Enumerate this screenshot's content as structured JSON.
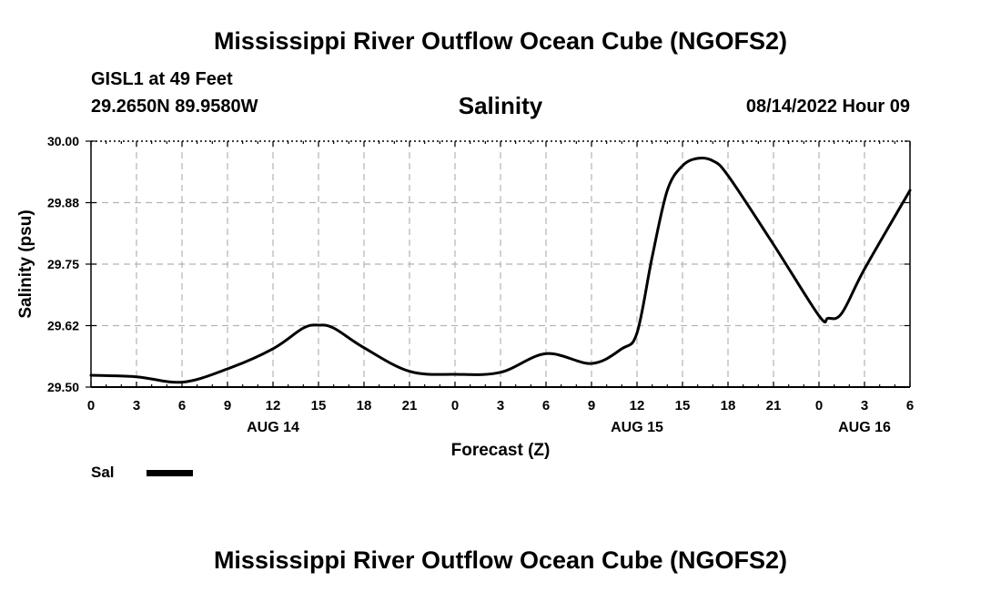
{
  "header": {
    "title": "Mississippi River Outflow Ocean Cube (NGOFS2)",
    "station": "GISL1 at 49 Feet",
    "coords": "29.2650N  89.9580W",
    "timestamp": "08/14/2022 Hour 09"
  },
  "footer": {
    "title": "Mississippi River Outflow Ocean Cube (NGOFS2)"
  },
  "legend": {
    "label": "Sal",
    "color": "#000000"
  },
  "chart_data": {
    "type": "line",
    "title": "Salinity",
    "xlabel": "Forecast (Z)",
    "ylabel": "Salinity (psu)",
    "xlim": [
      0,
      54
    ],
    "ylim": [
      29.5,
      30.0
    ],
    "grid": true,
    "y_ticks": [
      "30.00",
      "29.88",
      "29.75",
      "29.62",
      "29.50"
    ],
    "y_tick_values": [
      30.0,
      29.875,
      29.75,
      29.625,
      29.5
    ],
    "x_ticks": [
      {
        "hour": 0,
        "label": "0"
      },
      {
        "hour": 3,
        "label": "3"
      },
      {
        "hour": 6,
        "label": "6"
      },
      {
        "hour": 9,
        "label": "9"
      },
      {
        "hour": 12,
        "label": "12"
      },
      {
        "hour": 15,
        "label": "15"
      },
      {
        "hour": 18,
        "label": "18"
      },
      {
        "hour": 21,
        "label": "21"
      },
      {
        "hour": 24,
        "label": "0"
      },
      {
        "hour": 27,
        "label": "3"
      },
      {
        "hour": 30,
        "label": "6"
      },
      {
        "hour": 33,
        "label": "9"
      },
      {
        "hour": 36,
        "label": "12"
      },
      {
        "hour": 39,
        "label": "15"
      },
      {
        "hour": 42,
        "label": "18"
      },
      {
        "hour": 45,
        "label": "21"
      },
      {
        "hour": 48,
        "label": "0"
      },
      {
        "hour": 51,
        "label": "3"
      },
      {
        "hour": 54,
        "label": "6"
      }
    ],
    "date_labels": [
      {
        "hour": 12,
        "label": "AUG 14"
      },
      {
        "hour": 36,
        "label": "AUG 15"
      },
      {
        "hour": 51,
        "label": "AUG 16"
      }
    ],
    "series": [
      {
        "name": "Sal",
        "x": [
          0,
          3,
          6,
          9,
          12,
          14,
          15,
          16,
          18,
          21,
          24,
          27,
          30,
          33,
          35,
          36,
          37,
          38,
          39,
          40,
          41,
          42,
          45,
          48,
          48.6,
          49.5,
          51,
          54
        ],
        "y": [
          29.524,
          29.521,
          29.51,
          29.537,
          29.578,
          29.62,
          29.626,
          29.62,
          29.58,
          29.532,
          29.526,
          29.53,
          29.568,
          29.548,
          29.578,
          29.61,
          29.765,
          29.9,
          29.95,
          29.965,
          29.96,
          29.93,
          29.79,
          29.645,
          29.64,
          29.65,
          29.74,
          29.9
        ]
      }
    ]
  }
}
